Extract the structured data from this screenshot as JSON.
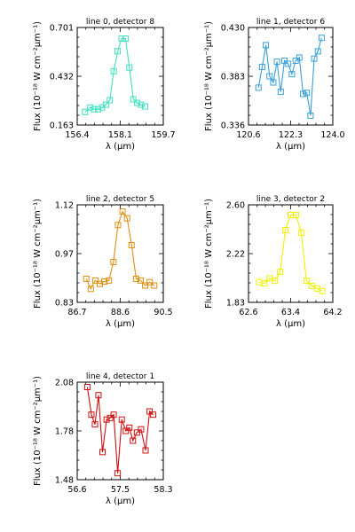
{
  "chart_data": [
    {
      "type": "line",
      "title": "line 0, detector 8",
      "xlabel": "λ (μm)",
      "ylabel": "Flux (10⁻¹⁸ W cm⁻²μm⁻¹)",
      "xlim": [
        156.4,
        159.7
      ],
      "ylim": [
        0.163,
        0.701
      ],
      "xticks": [
        "156.4",
        "158.1",
        "159.7"
      ],
      "yticks": [
        "0.163",
        "0.432",
        "0.701"
      ],
      "color": "#40e0c0",
      "series": [
        {
          "x": [
            156.7,
            156.9,
            157.05,
            157.2,
            157.35,
            157.5,
            157.65,
            157.8,
            157.95,
            158.1,
            158.25,
            158.4,
            158.55,
            158.7,
            158.85,
            159.0
          ],
          "y": [
            0.235,
            0.26,
            0.25,
            0.25,
            0.26,
            0.275,
            0.3,
            0.46,
            0.57,
            0.64,
            0.64,
            0.48,
            0.305,
            0.285,
            0.275,
            0.265
          ]
        }
      ]
    },
    {
      "type": "line",
      "title": "line 1, detector 6",
      "xlabel": "λ (μm)",
      "ylabel": "Flux (10⁻¹⁸ W cm⁻²μm⁻¹)",
      "xlim": [
        120.6,
        124.0
      ],
      "ylim": [
        0.336,
        0.43
      ],
      "xticks": [
        "120.6",
        "122.3",
        "124.0"
      ],
      "yticks": [
        "0.336",
        "0.383",
        "0.430"
      ],
      "color": "#3aa0d8",
      "series": [
        {
          "x": [
            121.0,
            121.15,
            121.3,
            121.45,
            121.6,
            121.75,
            121.9,
            122.05,
            122.2,
            122.35,
            122.5,
            122.65,
            122.8,
            122.95,
            123.1,
            123.25,
            123.4,
            123.55
          ],
          "y": [
            0.372,
            0.392,
            0.413,
            0.383,
            0.377,
            0.397,
            0.368,
            0.398,
            0.395,
            0.385,
            0.398,
            0.401,
            0.366,
            0.367,
            0.345,
            0.4,
            0.407,
            0.42
          ]
        }
      ]
    },
    {
      "type": "line",
      "title": "line 2, detector 5",
      "xlabel": "λ (μm)",
      "ylabel": "Flux (10⁻¹⁸ W cm⁻²μm⁻¹)",
      "xlim": [
        86.7,
        90.5
      ],
      "ylim": [
        0.83,
        1.12
      ],
      "xticks": [
        "86.7",
        "88.6",
        "90.5"
      ],
      "yticks": [
        "0.83",
        "0.97",
        "1.12"
      ],
      "color": "#e09010",
      "series": [
        {
          "x": [
            87.1,
            87.3,
            87.5,
            87.7,
            87.9,
            88.1,
            88.3,
            88.5,
            88.7,
            88.9,
            89.1,
            89.3,
            89.5,
            89.7,
            89.9,
            90.1
          ],
          "y": [
            0.9,
            0.87,
            0.895,
            0.885,
            0.892,
            0.895,
            0.95,
            1.06,
            1.1,
            1.08,
            1.0,
            0.9,
            0.895,
            0.88,
            0.89,
            0.88
          ]
        }
      ]
    },
    {
      "type": "line",
      "title": "line 3, detector 2",
      "xlabel": "λ (μm)",
      "ylabel": "Flux (10⁻¹⁸ W cm⁻²μm⁻¹)",
      "xlim": [
        62.6,
        64.2
      ],
      "ylim": [
        1.83,
        2.6
      ],
      "xticks": [
        "62.6",
        "63.4",
        "64.2"
      ],
      "yticks": [
        "1.83",
        "2.22",
        "2.60"
      ],
      "color": "#f0f000",
      "series": [
        {
          "x": [
            62.8,
            62.9,
            63.0,
            63.1,
            63.2,
            63.3,
            63.4,
            63.5,
            63.6,
            63.7,
            63.8,
            63.9,
            64.0
          ],
          "y": [
            1.99,
            1.98,
            2.02,
            2.0,
            2.07,
            2.4,
            2.52,
            2.52,
            2.38,
            2.0,
            1.96,
            1.94,
            1.92
          ]
        }
      ]
    },
    {
      "type": "line",
      "title": "line 4, detector 1",
      "xlabel": "λ (μm)",
      "ylabel": "Flux (10⁻¹⁸ W cm⁻²μm⁻¹)",
      "xlim": [
        56.6,
        58.3
      ],
      "ylim": [
        1.48,
        2.08
      ],
      "xticks": [
        "56.6",
        "57.5",
        "58.3"
      ],
      "yticks": [
        "1.48",
        "1.78",
        "2.08"
      ],
      "color": "#d01010",
      "series": [
        {
          "x": [
            56.8,
            56.88,
            56.95,
            57.02,
            57.1,
            57.18,
            57.25,
            57.32,
            57.4,
            57.48,
            57.56,
            57.63,
            57.7,
            57.78,
            57.86,
            57.95,
            58.03,
            58.1
          ],
          "y": [
            2.05,
            1.88,
            1.82,
            2.0,
            1.65,
            1.85,
            1.86,
            1.88,
            1.52,
            1.85,
            1.78,
            1.8,
            1.72,
            1.77,
            1.79,
            1.66,
            1.9,
            1.88
          ]
        }
      ]
    }
  ]
}
